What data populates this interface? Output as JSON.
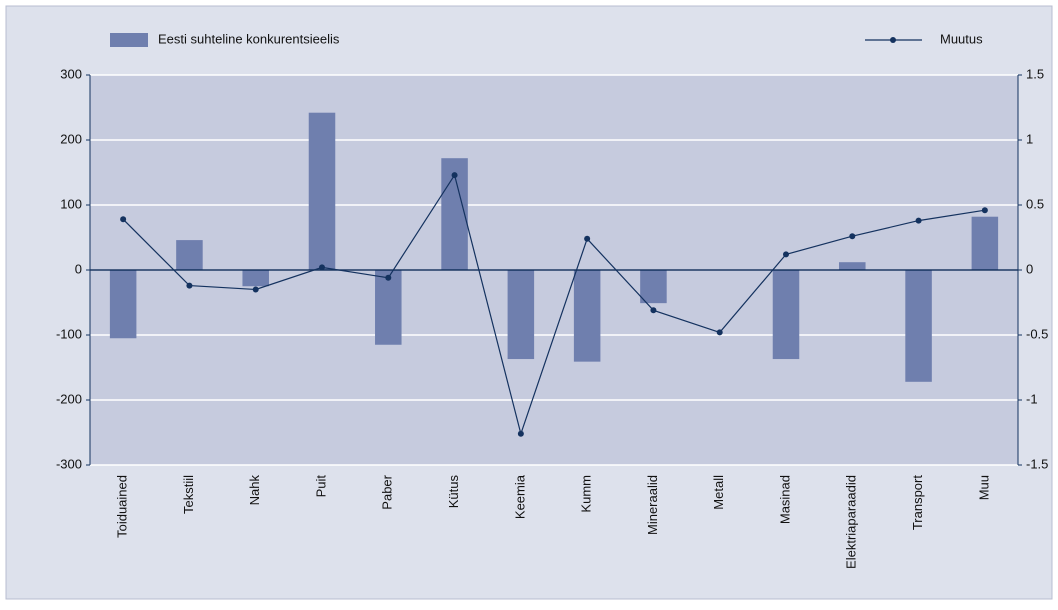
{
  "chart_data": {
    "type": "bar_line",
    "categories": [
      "Toiduained",
      "Tekstiil",
      "Nahk",
      "Puit",
      "Paber",
      "Kütus",
      "Keemia",
      "Kumm",
      "Mineraalid",
      "Metall",
      "Masinad",
      "Elektriaparaadid",
      "Transport",
      "Muu"
    ],
    "series": [
      {
        "name": "Eesti suhteline konkurentsieelis",
        "type": "bar",
        "color": "#6f7fae",
        "values": [
          -105,
          46,
          -25,
          242,
          -115,
          172,
          -137,
          -141,
          -51,
          0,
          -137,
          12,
          -172,
          82
        ]
      },
      {
        "name": "Muutus",
        "type": "line",
        "axis": "y2",
        "color": "#14325f",
        "values": [
          0.39,
          -0.12,
          -0.15,
          0.02,
          -0.06,
          0.73,
          -1.26,
          0.24,
          -0.31,
          -0.48,
          0.12,
          0.26,
          0.38,
          0.46
        ]
      }
    ],
    "ylim": [
      -300,
      300
    ],
    "yticks": [
      -300,
      -200,
      -100,
      0,
      100,
      200,
      300
    ],
    "y2lim": [
      -1.5,
      1.5
    ],
    "y2ticks": [
      -1.5,
      -1,
      -0.5,
      0,
      0.5,
      1,
      1.5
    ],
    "grid": true
  }
}
